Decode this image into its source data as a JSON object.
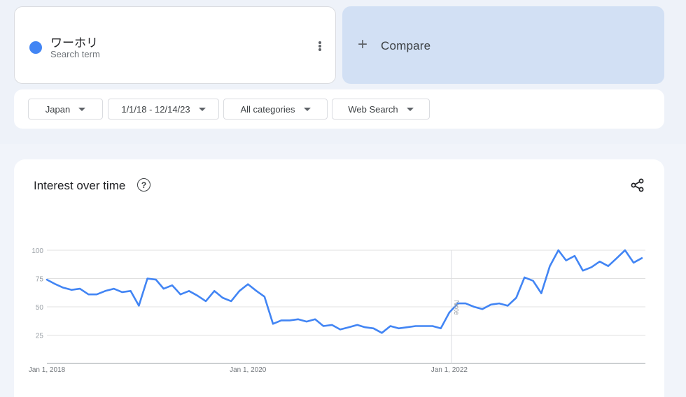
{
  "search_term": {
    "name": "ワーホリ",
    "subtitle": "Search term",
    "dot_color": "#4285f4"
  },
  "compare": {
    "icon": "plus-icon",
    "label": "Compare"
  },
  "filters": {
    "region": "Japan",
    "date_range": "1/1/18 - 12/14/23",
    "category": "All categories",
    "search_type": "Web Search"
  },
  "chart_panel": {
    "title": "Interest over time",
    "help_icon": "help-circle-icon",
    "share_icon": "share-icon"
  },
  "chart_data": {
    "type": "line",
    "title": "Interest over time",
    "x_range": [
      "2018-01-01",
      "2023-12-14"
    ],
    "x_tick_labels": [
      "Jan 1, 2018",
      "Jan 1, 2020",
      "Jan 1, 2022"
    ],
    "x_tick_dates": [
      "2018-01-01",
      "2020-01-01",
      "2022-01-01"
    ],
    "ylim": [
      0,
      100
    ],
    "y_ticks": [
      25,
      50,
      75,
      100
    ],
    "grid": true,
    "annotation": {
      "label": "Note",
      "date": "2022-01-01"
    },
    "line_color": "#4285f4",
    "series": [
      {
        "x": [
          "2018-01",
          "2018-02",
          "2018-03",
          "2018-04",
          "2018-05",
          "2018-06",
          "2018-07",
          "2018-08",
          "2018-09",
          "2018-10",
          "2018-11",
          "2018-12",
          "2019-01",
          "2019-02",
          "2019-03",
          "2019-04",
          "2019-05",
          "2019-06",
          "2019-07",
          "2019-08",
          "2019-09",
          "2019-10",
          "2019-11",
          "2019-12",
          "2020-01",
          "2020-02",
          "2020-03",
          "2020-04",
          "2020-05",
          "2020-06",
          "2020-07",
          "2020-08",
          "2020-09",
          "2020-10",
          "2020-11",
          "2020-12",
          "2021-01",
          "2021-02",
          "2021-03",
          "2021-04",
          "2021-05",
          "2021-06",
          "2021-07",
          "2021-08",
          "2021-09",
          "2021-10",
          "2021-11",
          "2021-12",
          "2022-01",
          "2022-02",
          "2022-03",
          "2022-04",
          "2022-05",
          "2022-06",
          "2022-07",
          "2022-08",
          "2022-09",
          "2022-10",
          "2022-11",
          "2022-12",
          "2023-01",
          "2023-02",
          "2023-03",
          "2023-04",
          "2023-05",
          "2023-06",
          "2023-07",
          "2023-08",
          "2023-09",
          "2023-10",
          "2023-11",
          "2023-12"
        ],
        "values": [
          74,
          70,
          67,
          65,
          66,
          61,
          61,
          64,
          66,
          63,
          64,
          51,
          75,
          74,
          66,
          69,
          61,
          64,
          60,
          55,
          64,
          58,
          55,
          64,
          70,
          64,
          59,
          35,
          38,
          38,
          39,
          37,
          39,
          33,
          34,
          30,
          32,
          34,
          32,
          31,
          27,
          33,
          31,
          32,
          33,
          33,
          33,
          31,
          45,
          53,
          53,
          50,
          48,
          52,
          53,
          51,
          58,
          76,
          73,
          62,
          86,
          100,
          91,
          95,
          82,
          85,
          90,
          86,
          93,
          100,
          89,
          93
        ]
      }
    ]
  }
}
